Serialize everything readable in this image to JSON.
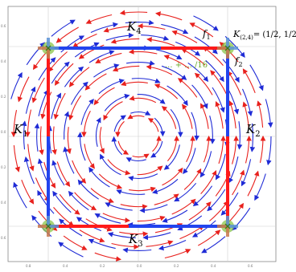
{
  "labels": {
    "k4": "K",
    "k4_sub": "4",
    "k1": "K",
    "k1_sub": "1",
    "k2": "K",
    "k2_sub": "2",
    "k3": "K",
    "k3_sub": "3",
    "f1": "f",
    "f1_sub": "1",
    "f2": "f",
    "f2_sub": "2",
    "corner_label": "K",
    "corner_label_sub": "(2,4)",
    "corner_label_value": "= (1/2, 1/2)",
    "green_annotation": "... + ... /16",
    "green_annotation_denom": "16"
  },
  "colors": {
    "red_field": "#e8211d",
    "blue_field": "#1f2bd6",
    "square_red": "#ff1a1a",
    "square_blue": "#2244ee",
    "corner_blue": "#5b93d6",
    "corner_orange": "#c8794d",
    "corner_green": "#8bc64a",
    "annotation_green": "#6aaa2a",
    "grid": "#bdbdbd"
  },
  "axes": {
    "x_ticks": [
      "0.8",
      "0.4",
      "0.2",
      "0.0",
      "0.2",
      "0.4",
      "0.6"
    ],
    "y_ticks": [
      "0.6",
      "0.4",
      "0.2",
      "0.0",
      "0.2",
      "0.4",
      "0.6"
    ]
  }
}
